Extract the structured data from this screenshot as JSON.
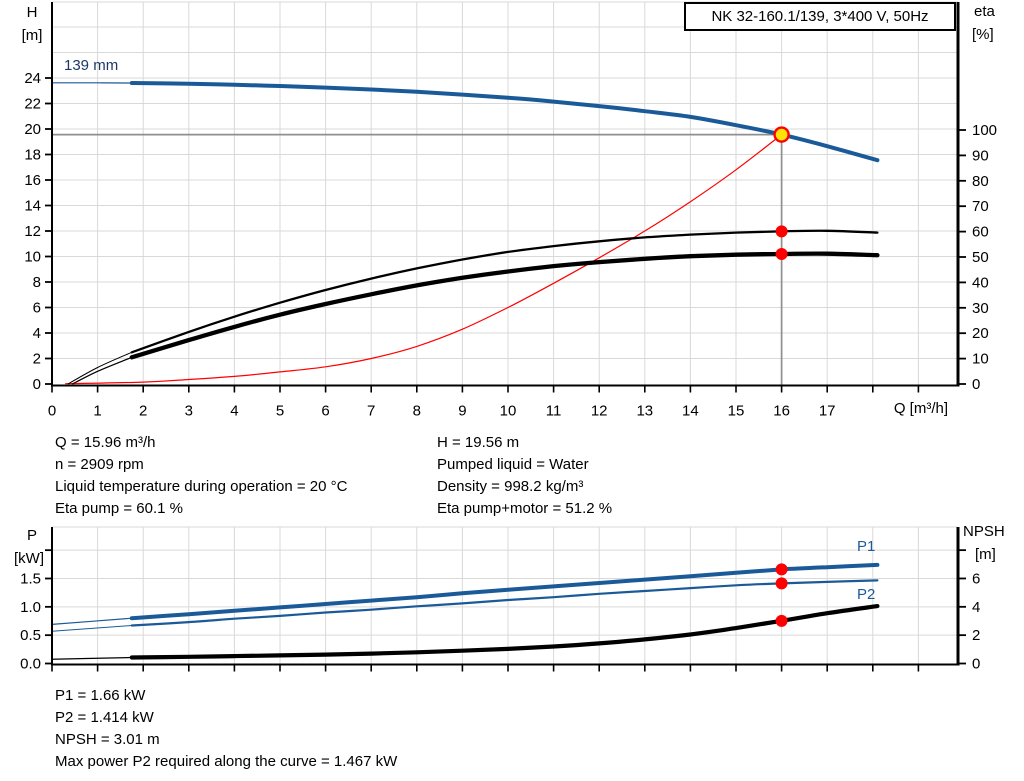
{
  "title_box": "NK 32-160.1/139, 3*400 V, 50Hz",
  "colors": {
    "blue": "#1B5A99",
    "navy": "#1F3864",
    "red": "#FF0000",
    "yellow": "#FFE10A",
    "black": "#000000",
    "grid": "#D9D9D9",
    "crosshair": "#8F8F8F",
    "axis": "#000000"
  },
  "labels": {
    "h": "H",
    "m": "[m]",
    "eta": "eta",
    "pct": "[%]",
    "q_axis": "Q [m³/h]",
    "p": "P",
    "kw": "[kW]",
    "npsh": "NPSH",
    "npsh_m": "[m]",
    "impeller": "139 mm",
    "p1": "P1",
    "p2": "P2"
  },
  "info_top": {
    "left": [
      "Q = 15.96 m³/h",
      "n = 2909 rpm",
      "Liquid temperature during operation = 20 °C",
      "Eta pump = 60.1 %"
    ],
    "right": [
      "H = 19.56 m",
      "Pumped liquid = Water",
      "Density = 998.2 kg/m³",
      "Eta pump+motor = 51.2 %"
    ]
  },
  "info_bottom": [
    "P1 = 1.66 kW",
    "P2 = 1.414 kW",
    "NPSH = 3.01 m",
    "Max power P2 required along the curve = 1.467 kW"
  ],
  "chart_data": [
    {
      "type": "line",
      "title": "NK 32-160.1/139, 3*400 V, 50Hz",
      "xlabel": "Q [m³/h]",
      "ylabel_left": "H [m]",
      "ylabel_right": "eta [%]",
      "xlim": [
        0,
        19.87
      ],
      "ylim_left": [
        0,
        30
      ],
      "ylim_right": [
        0,
        150
      ],
      "grid": true,
      "x_grid_max": 19,
      "x_ticks": [
        0,
        1,
        2,
        3,
        4,
        5,
        6,
        7,
        8,
        9,
        10,
        11,
        12,
        13,
        14,
        15,
        16,
        17
      ],
      "y_left_ticks": [
        {
          "v": 0,
          "label": "0"
        },
        {
          "v": 2,
          "label": "2"
        },
        {
          "v": 4,
          "label": "4"
        },
        {
          "v": 6,
          "label": "6"
        },
        {
          "v": 8,
          "label": "8"
        },
        {
          "v": 10,
          "label": "10"
        },
        {
          "v": 12,
          "label": "12"
        },
        {
          "v": 14,
          "label": "14"
        },
        {
          "v": 16,
          "label": "16"
        },
        {
          "v": 18,
          "label": "18"
        },
        {
          "v": 20,
          "label": "20"
        },
        {
          "v": 22,
          "label": "22"
        },
        {
          "v": 24,
          "label": "24"
        }
      ],
      "y_right_ticks": [
        {
          "v": 0,
          "label": "0"
        },
        {
          "v": 10,
          "label": "10"
        },
        {
          "v": 20,
          "label": "20"
        },
        {
          "v": 30,
          "label": "30"
        },
        {
          "v": 40,
          "label": "40"
        },
        {
          "v": 50,
          "label": "50"
        },
        {
          "v": 60,
          "label": "60"
        },
        {
          "v": 70,
          "label": "70"
        },
        {
          "v": 80,
          "label": "80"
        },
        {
          "v": 90,
          "label": "90"
        },
        {
          "v": 100,
          "label": "100"
        }
      ],
      "duty_point": {
        "q": 16,
        "h": 19.56
      },
      "markers": [
        {
          "axis": "right",
          "q": 16,
          "v": 60.1
        },
        {
          "axis": "right",
          "q": 16,
          "v": 51.2
        }
      ],
      "series": [
        {
          "name": "system-curve",
          "axis": "left",
          "color": "red",
          "width": 1.2,
          "points": [
            [
              0.3,
              0.02
            ],
            [
              2,
              0.15
            ],
            [
              3,
              0.35
            ],
            [
              4,
              0.6
            ],
            [
              5,
              0.95
            ],
            [
              6,
              1.35
            ],
            [
              7,
              2.0
            ],
            [
              8,
              2.95
            ],
            [
              9,
              4.3
            ],
            [
              10,
              6.0
            ],
            [
              11,
              7.9
            ],
            [
              12,
              9.9
            ],
            [
              13,
              12.0
            ],
            [
              14,
              14.3
            ],
            [
              15,
              16.8
            ],
            [
              16,
              19.56
            ]
          ]
        },
        {
          "name": "head-139mm",
          "axis": "left",
          "color": "blue",
          "width": 4,
          "thin_until": 1.75,
          "points": [
            [
              0,
              23.62
            ],
            [
              1,
              23.62
            ],
            [
              1.75,
              23.61
            ],
            [
              3,
              23.55
            ],
            [
              4,
              23.47
            ],
            [
              5,
              23.37
            ],
            [
              6,
              23.25
            ],
            [
              7,
              23.1
            ],
            [
              8,
              22.92
            ],
            [
              9,
              22.7
            ],
            [
              10,
              22.45
            ],
            [
              11,
              22.15
            ],
            [
              12,
              21.8
            ],
            [
              13,
              21.4
            ],
            [
              14,
              20.95
            ],
            [
              15,
              20.3
            ],
            [
              16,
              19.56
            ],
            [
              17,
              18.65
            ],
            [
              18.1,
              17.55
            ]
          ]
        },
        {
          "name": "eta-pump",
          "axis": "right",
          "color": "black",
          "width": 2.3,
          "thin_until": 1.75,
          "points": [
            [
              0.35,
              0
            ],
            [
              1,
              6.5
            ],
            [
              1.75,
              12.5
            ],
            [
              3,
              20.5
            ],
            [
              4,
              26.5
            ],
            [
              5,
              32
            ],
            [
              6,
              37
            ],
            [
              7,
              41.5
            ],
            [
              8,
              45.5
            ],
            [
              9,
              49
            ],
            [
              10,
              52
            ],
            [
              11,
              54.3
            ],
            [
              12,
              56.2
            ],
            [
              13,
              57.7
            ],
            [
              14,
              58.8
            ],
            [
              15,
              59.6
            ],
            [
              16,
              60.1
            ],
            [
              17,
              60.3
            ],
            [
              18.1,
              59.6
            ]
          ]
        },
        {
          "name": "eta-pump-motor",
          "axis": "right",
          "color": "black",
          "width": 4.3,
          "thin_until": 1.75,
          "points": [
            [
              0.45,
              0
            ],
            [
              1,
              5
            ],
            [
              1.75,
              10.5
            ],
            [
              3,
              17.3
            ],
            [
              4,
              22.5
            ],
            [
              5,
              27.3
            ],
            [
              6,
              31.5
            ],
            [
              7,
              35.3
            ],
            [
              8,
              38.8
            ],
            [
              9,
              41.8
            ],
            [
              10,
              44.3
            ],
            [
              11,
              46.4
            ],
            [
              12,
              48
            ],
            [
              13,
              49.3
            ],
            [
              14,
              50.3
            ],
            [
              15,
              50.9
            ],
            [
              16,
              51.2
            ],
            [
              17,
              51.3
            ],
            [
              18.1,
              50.7
            ]
          ]
        }
      ]
    },
    {
      "type": "line",
      "title": "",
      "xlabel": "",
      "ylabel_left": "P [kW]",
      "ylabel_right": "NPSH [m]",
      "xlim": [
        0,
        19.87
      ],
      "ylim_left": [
        0,
        2.42
      ],
      "ylim_right": [
        0,
        9.65
      ],
      "grid": true,
      "x_grid_max": 19,
      "x_ticks": [],
      "y_left_ticks": [
        {
          "v": 0,
          "label": "0.0"
        },
        {
          "v": 0.5,
          "label": "0.5"
        },
        {
          "v": 1,
          "label": "1.0"
        },
        {
          "v": 1.5,
          "label": "1.5"
        },
        {
          "v": 2,
          "label": ""
        }
      ],
      "y_right_ticks": [
        {
          "v": 0,
          "label": "0"
        },
        {
          "v": 2,
          "label": "2"
        },
        {
          "v": 4,
          "label": "4"
        },
        {
          "v": 6,
          "label": "6"
        },
        {
          "v": 8,
          "label": ""
        }
      ],
      "markers": [
        {
          "axis": "left",
          "q": 16,
          "v": 1.66
        },
        {
          "axis": "left",
          "q": 16,
          "v": 1.414
        },
        {
          "axis": "right",
          "q": 16,
          "v": 3.01
        }
      ],
      "series": [
        {
          "name": "p1-curve",
          "axis": "left",
          "color": "blue",
          "width": 4,
          "thin_until": 1.75,
          "points": [
            [
              0,
              0.69
            ],
            [
              1.75,
              0.8
            ],
            [
              3,
              0.87
            ],
            [
              4,
              0.93
            ],
            [
              5,
              0.99
            ],
            [
              6,
              1.05
            ],
            [
              7,
              1.11
            ],
            [
              8,
              1.17
            ],
            [
              9,
              1.24
            ],
            [
              10,
              1.3
            ],
            [
              11,
              1.36
            ],
            [
              12,
              1.42
            ],
            [
              13,
              1.48
            ],
            [
              14,
              1.54
            ],
            [
              15,
              1.6
            ],
            [
              16,
              1.66
            ],
            [
              17,
              1.7
            ],
            [
              18.1,
              1.74
            ]
          ]
        },
        {
          "name": "p2-curve",
          "axis": "left",
          "color": "blue",
          "width": 2.2,
          "thin_until": 1.75,
          "points": [
            [
              0,
              0.57
            ],
            [
              1.75,
              0.67
            ],
            [
              3,
              0.73
            ],
            [
              4,
              0.79
            ],
            [
              5,
              0.84
            ],
            [
              6,
              0.9
            ],
            [
              7,
              0.95
            ],
            [
              8,
              1.01
            ],
            [
              9,
              1.06
            ],
            [
              10,
              1.12
            ],
            [
              11,
              1.17
            ],
            [
              12,
              1.23
            ],
            [
              13,
              1.28
            ],
            [
              14,
              1.33
            ],
            [
              15,
              1.38
            ],
            [
              16,
              1.414
            ],
            [
              17,
              1.44
            ],
            [
              18.1,
              1.467
            ]
          ]
        },
        {
          "name": "npsh-curve",
          "axis": "right",
          "color": "black",
          "width": 4.2,
          "thin_until": 1.75,
          "points": [
            [
              0,
              0.3
            ],
            [
              1.75,
              0.42
            ],
            [
              3,
              0.47
            ],
            [
              4,
              0.52
            ],
            [
              5,
              0.57
            ],
            [
              6,
              0.63
            ],
            [
              7,
              0.7
            ],
            [
              8,
              0.79
            ],
            [
              9,
              0.9
            ],
            [
              10,
              1.03
            ],
            [
              11,
              1.2
            ],
            [
              12,
              1.42
            ],
            [
              13,
              1.7
            ],
            [
              14,
              2.05
            ],
            [
              15,
              2.5
            ],
            [
              16,
              3.01
            ],
            [
              17,
              3.55
            ],
            [
              18.1,
              4.05
            ]
          ]
        }
      ]
    }
  ]
}
